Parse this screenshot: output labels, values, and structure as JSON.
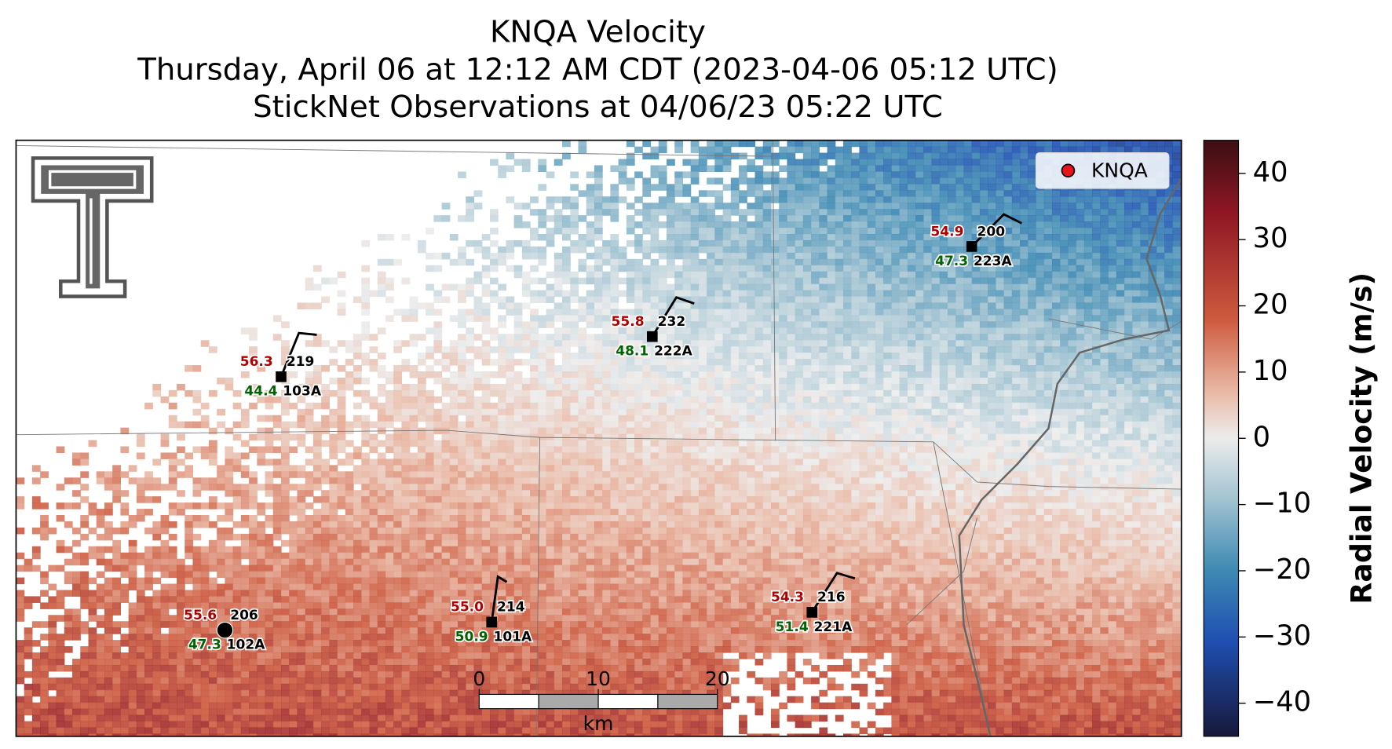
{
  "header": {
    "title": "KNQA Velocity",
    "subtitle": "Thursday, April 06 at 12:12 AM CDT (2023-04-06 05:12 UTC)",
    "observations": "StickNet Observations at 04/06/23 05:22 UTC"
  },
  "legend": {
    "label": "KNQA",
    "color": "#e8141b"
  },
  "stations": [
    {
      "id": "103A",
      "temperature": 56.3,
      "dewpoint": 44.4,
      "value": 219
    },
    {
      "id": "222A",
      "temperature": 55.8,
      "dewpoint": 48.1,
      "value": 232
    },
    {
      "id": "223A",
      "temperature": 54.9,
      "dewpoint": 47.3,
      "value": 200
    },
    {
      "id": "102A",
      "temperature": 55.6,
      "dewpoint": 47.3,
      "value": 206
    },
    {
      "id": "101A",
      "temperature": 55.0,
      "dewpoint": 50.9,
      "value": 214
    },
    {
      "id": "221A",
      "temperature": 54.3,
      "dewpoint": 51.4,
      "value": 216
    }
  ],
  "colorbar": {
    "label": "Radial Velocity (m/s)",
    "ylim": [
      -45,
      45
    ],
    "yticks": [
      40,
      30,
      20,
      10,
      0,
      {
        "value": -10,
        "label": "−10"
      },
      {
        "value": -20,
        "label": "−20"
      },
      {
        "value": -30,
        "label": "−30"
      },
      {
        "value": -40,
        "label": "−40"
      }
    ]
  },
  "scale_bar": {
    "label": "km",
    "xlim": [
      0,
      20
    ],
    "xticks": [
      0,
      10,
      20
    ]
  }
}
